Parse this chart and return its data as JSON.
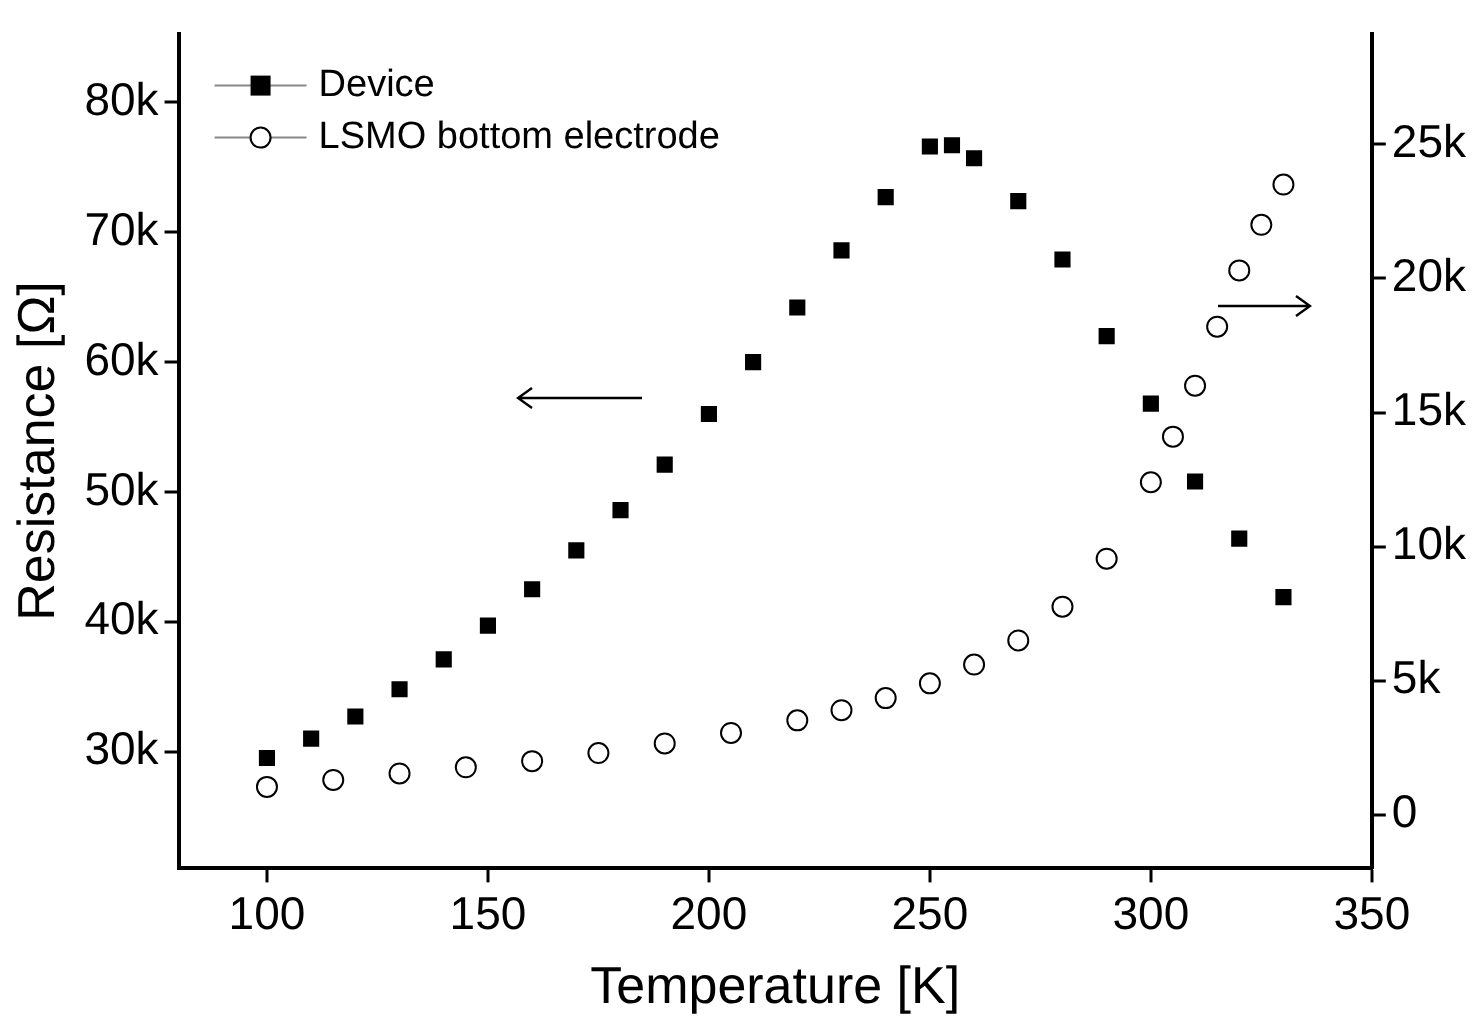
{
  "chart_data": {
    "type": "scatter",
    "xlabel": "Temperature [K]",
    "ylabel": "Resistance [Ω]",
    "xlim": [
      80,
      350
    ],
    "xticks": [
      100,
      150,
      200,
      250,
      300,
      350
    ],
    "ylim": [
      21000,
      85300
    ],
    "yticks": [
      {
        "value": 30000,
        "label": "30k"
      },
      {
        "value": 40000,
        "label": "40k"
      },
      {
        "value": 50000,
        "label": "50k"
      },
      {
        "value": 60000,
        "label": "60k"
      },
      {
        "value": 70000,
        "label": "70k"
      },
      {
        "value": 80000,
        "label": "80k"
      }
    ],
    "y2lim": [
      -2000,
      29130
    ],
    "y2ticks": [
      0,
      {
        "value": 5000,
        "label": "5k"
      },
      {
        "value": 10000,
        "label": "10k"
      },
      {
        "value": 15000,
        "label": "15k"
      },
      {
        "value": 20000,
        "label": "20k"
      },
      {
        "value": 25000,
        "label": "25k"
      }
    ],
    "legend": "top left",
    "grid": false,
    "series": [
      {
        "name": "Device",
        "color": "#000000",
        "marker": "square",
        "axis": "y",
        "x": [
          100,
          110,
          120,
          130,
          140,
          150,
          160,
          170,
          180,
          190,
          200,
          210,
          220,
          230,
          240,
          250,
          255,
          260,
          270,
          280,
          290,
          300,
          310,
          320,
          330
        ],
        "values": [
          29500,
          31000,
          32700,
          34800,
          37100,
          39700,
          42500,
          45500,
          48600,
          52100,
          56000,
          60000,
          64200,
          68600,
          72700,
          76600,
          76700,
          75700,
          72400,
          67900,
          62000,
          56800,
          50800,
          46400,
          41900
        ]
      },
      {
        "name": "LSMO bottom electrode",
        "color": "#000000",
        "marker": "circle",
        "axis": "y2",
        "x": [
          100,
          115,
          130,
          145,
          160,
          175,
          190,
          205,
          220,
          230,
          240,
          250,
          260,
          270,
          280,
          290,
          300,
          305,
          310,
          315,
          320,
          325,
          330
        ],
        "values": [
          1040,
          1300,
          1540,
          1770,
          2000,
          2300,
          2660,
          3050,
          3520,
          3900,
          4350,
          4900,
          5600,
          6500,
          7760,
          9550,
          12400,
          14100,
          16000,
          18200,
          20300,
          22000,
          23500
        ]
      }
    ]
  }
}
